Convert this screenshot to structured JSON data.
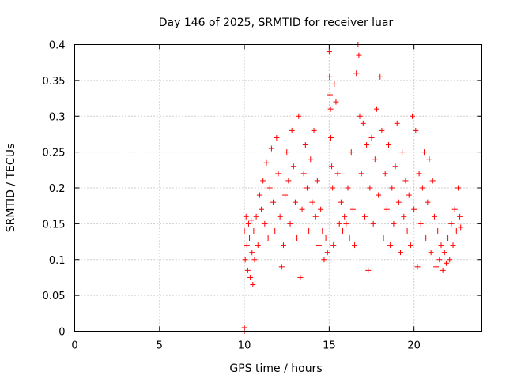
{
  "chart_data": {
    "type": "scatter",
    "title": "Day 146 of 2025, SRMTID for receiver luar",
    "xlabel": "GPS time / hours",
    "ylabel": "SRMTID / TECUs",
    "xlim": [
      0,
      24
    ],
    "ylim": [
      0,
      0.4
    ],
    "xticks": [
      0,
      5,
      10,
      15,
      20
    ],
    "xtick_labels": [
      "0",
      "5",
      "10",
      "15",
      "20"
    ],
    "yticks": [
      0,
      0.05,
      0.1,
      0.15,
      0.2,
      0.25,
      0.3,
      0.35,
      0.4
    ],
    "ytick_labels": [
      "0",
      "0.05",
      "0.1",
      "0.15",
      "0.2",
      "0.25",
      "0.3",
      "0.35",
      "0.4"
    ],
    "grid": true,
    "marker": "+",
    "color": "#ff0000",
    "series": [
      {
        "name": "SRMTID",
        "points": [
          [
            10.0,
            0.0
          ],
          [
            10.0,
            0.005
          ],
          [
            10.0,
            0.14
          ],
          [
            10.05,
            0.1
          ],
          [
            10.1,
            0.16
          ],
          [
            10.15,
            0.12
          ],
          [
            10.2,
            0.085
          ],
          [
            10.25,
            0.15
          ],
          [
            10.3,
            0.13
          ],
          [
            10.35,
            0.075
          ],
          [
            10.4,
            0.155
          ],
          [
            10.45,
            0.11
          ],
          [
            10.5,
            0.065
          ],
          [
            10.55,
            0.14
          ],
          [
            10.6,
            0.1
          ],
          [
            10.7,
            0.16
          ],
          [
            10.8,
            0.12
          ],
          [
            10.9,
            0.19
          ],
          [
            11.0,
            0.17
          ],
          [
            11.1,
            0.21
          ],
          [
            11.2,
            0.15
          ],
          [
            11.3,
            0.235
          ],
          [
            11.4,
            0.13
          ],
          [
            11.5,
            0.2
          ],
          [
            11.6,
            0.255
          ],
          [
            11.7,
            0.18
          ],
          [
            11.8,
            0.14
          ],
          [
            11.9,
            0.27
          ],
          [
            12.0,
            0.22
          ],
          [
            12.1,
            0.16
          ],
          [
            12.2,
            0.09
          ],
          [
            12.3,
            0.12
          ],
          [
            12.4,
            0.19
          ],
          [
            12.5,
            0.25
          ],
          [
            12.6,
            0.21
          ],
          [
            12.7,
            0.15
          ],
          [
            12.8,
            0.28
          ],
          [
            12.9,
            0.23
          ],
          [
            13.0,
            0.18
          ],
          [
            13.1,
            0.13
          ],
          [
            13.2,
            0.3
          ],
          [
            13.3,
            0.075
          ],
          [
            13.4,
            0.17
          ],
          [
            13.5,
            0.22
          ],
          [
            13.6,
            0.26
          ],
          [
            13.7,
            0.2
          ],
          [
            13.8,
            0.14
          ],
          [
            13.9,
            0.24
          ],
          [
            14.0,
            0.18
          ],
          [
            14.1,
            0.28
          ],
          [
            14.2,
            0.16
          ],
          [
            14.3,
            0.21
          ],
          [
            14.4,
            0.12
          ],
          [
            14.5,
            0.17
          ],
          [
            14.6,
            0.14
          ],
          [
            14.7,
            0.1
          ],
          [
            14.8,
            0.13
          ],
          [
            14.9,
            0.11
          ],
          [
            15.0,
            0.39
          ],
          [
            15.02,
            0.355
          ],
          [
            15.05,
            0.33
          ],
          [
            15.08,
            0.31
          ],
          [
            15.1,
            0.27
          ],
          [
            15.15,
            0.23
          ],
          [
            15.2,
            0.2
          ],
          [
            15.25,
            0.12
          ],
          [
            15.3,
            0.345
          ],
          [
            15.4,
            0.32
          ],
          [
            15.5,
            0.22
          ],
          [
            15.6,
            0.15
          ],
          [
            15.7,
            0.18
          ],
          [
            15.8,
            0.14
          ],
          [
            15.9,
            0.16
          ],
          [
            16.0,
            0.15
          ],
          [
            16.1,
            0.2
          ],
          [
            16.2,
            0.13
          ],
          [
            16.3,
            0.25
          ],
          [
            16.4,
            0.17
          ],
          [
            16.5,
            0.12
          ],
          [
            16.6,
            0.36
          ],
          [
            16.7,
            0.4
          ],
          [
            16.75,
            0.385
          ],
          [
            16.8,
            0.3
          ],
          [
            16.9,
            0.22
          ],
          [
            17.0,
            0.29
          ],
          [
            17.1,
            0.16
          ],
          [
            17.2,
            0.26
          ],
          [
            17.3,
            0.085
          ],
          [
            17.4,
            0.2
          ],
          [
            17.5,
            0.27
          ],
          [
            17.6,
            0.15
          ],
          [
            17.7,
            0.24
          ],
          [
            17.8,
            0.31
          ],
          [
            17.9,
            0.19
          ],
          [
            18.0,
            0.355
          ],
          [
            18.1,
            0.28
          ],
          [
            18.2,
            0.13
          ],
          [
            18.3,
            0.22
          ],
          [
            18.4,
            0.17
          ],
          [
            18.5,
            0.26
          ],
          [
            18.6,
            0.12
          ],
          [
            18.7,
            0.2
          ],
          [
            18.8,
            0.15
          ],
          [
            18.9,
            0.23
          ],
          [
            19.0,
            0.29
          ],
          [
            19.1,
            0.18
          ],
          [
            19.2,
            0.11
          ],
          [
            19.3,
            0.25
          ],
          [
            19.4,
            0.16
          ],
          [
            19.5,
            0.21
          ],
          [
            19.6,
            0.14
          ],
          [
            19.7,
            0.19
          ],
          [
            19.8,
            0.12
          ],
          [
            19.9,
            0.3
          ],
          [
            20.0,
            0.17
          ],
          [
            20.1,
            0.28
          ],
          [
            20.2,
            0.09
          ],
          [
            20.3,
            0.22
          ],
          [
            20.4,
            0.15
          ],
          [
            20.5,
            0.2
          ],
          [
            20.6,
            0.25
          ],
          [
            20.7,
            0.13
          ],
          [
            20.8,
            0.18
          ],
          [
            20.9,
            0.24
          ],
          [
            21.0,
            0.11
          ],
          [
            21.1,
            0.21
          ],
          [
            21.2,
            0.16
          ],
          [
            21.3,
            0.09
          ],
          [
            21.4,
            0.14
          ],
          [
            21.5,
            0.1
          ],
          [
            21.6,
            0.12
          ],
          [
            21.7,
            0.085
          ],
          [
            21.8,
            0.11
          ],
          [
            21.9,
            0.095
          ],
          [
            22.0,
            0.13
          ],
          [
            22.1,
            0.1
          ],
          [
            22.2,
            0.15
          ],
          [
            22.3,
            0.12
          ],
          [
            22.4,
            0.17
          ],
          [
            22.5,
            0.14
          ],
          [
            22.6,
            0.2
          ],
          [
            22.7,
            0.16
          ],
          [
            22.75,
            0.145
          ]
        ]
      }
    ]
  }
}
